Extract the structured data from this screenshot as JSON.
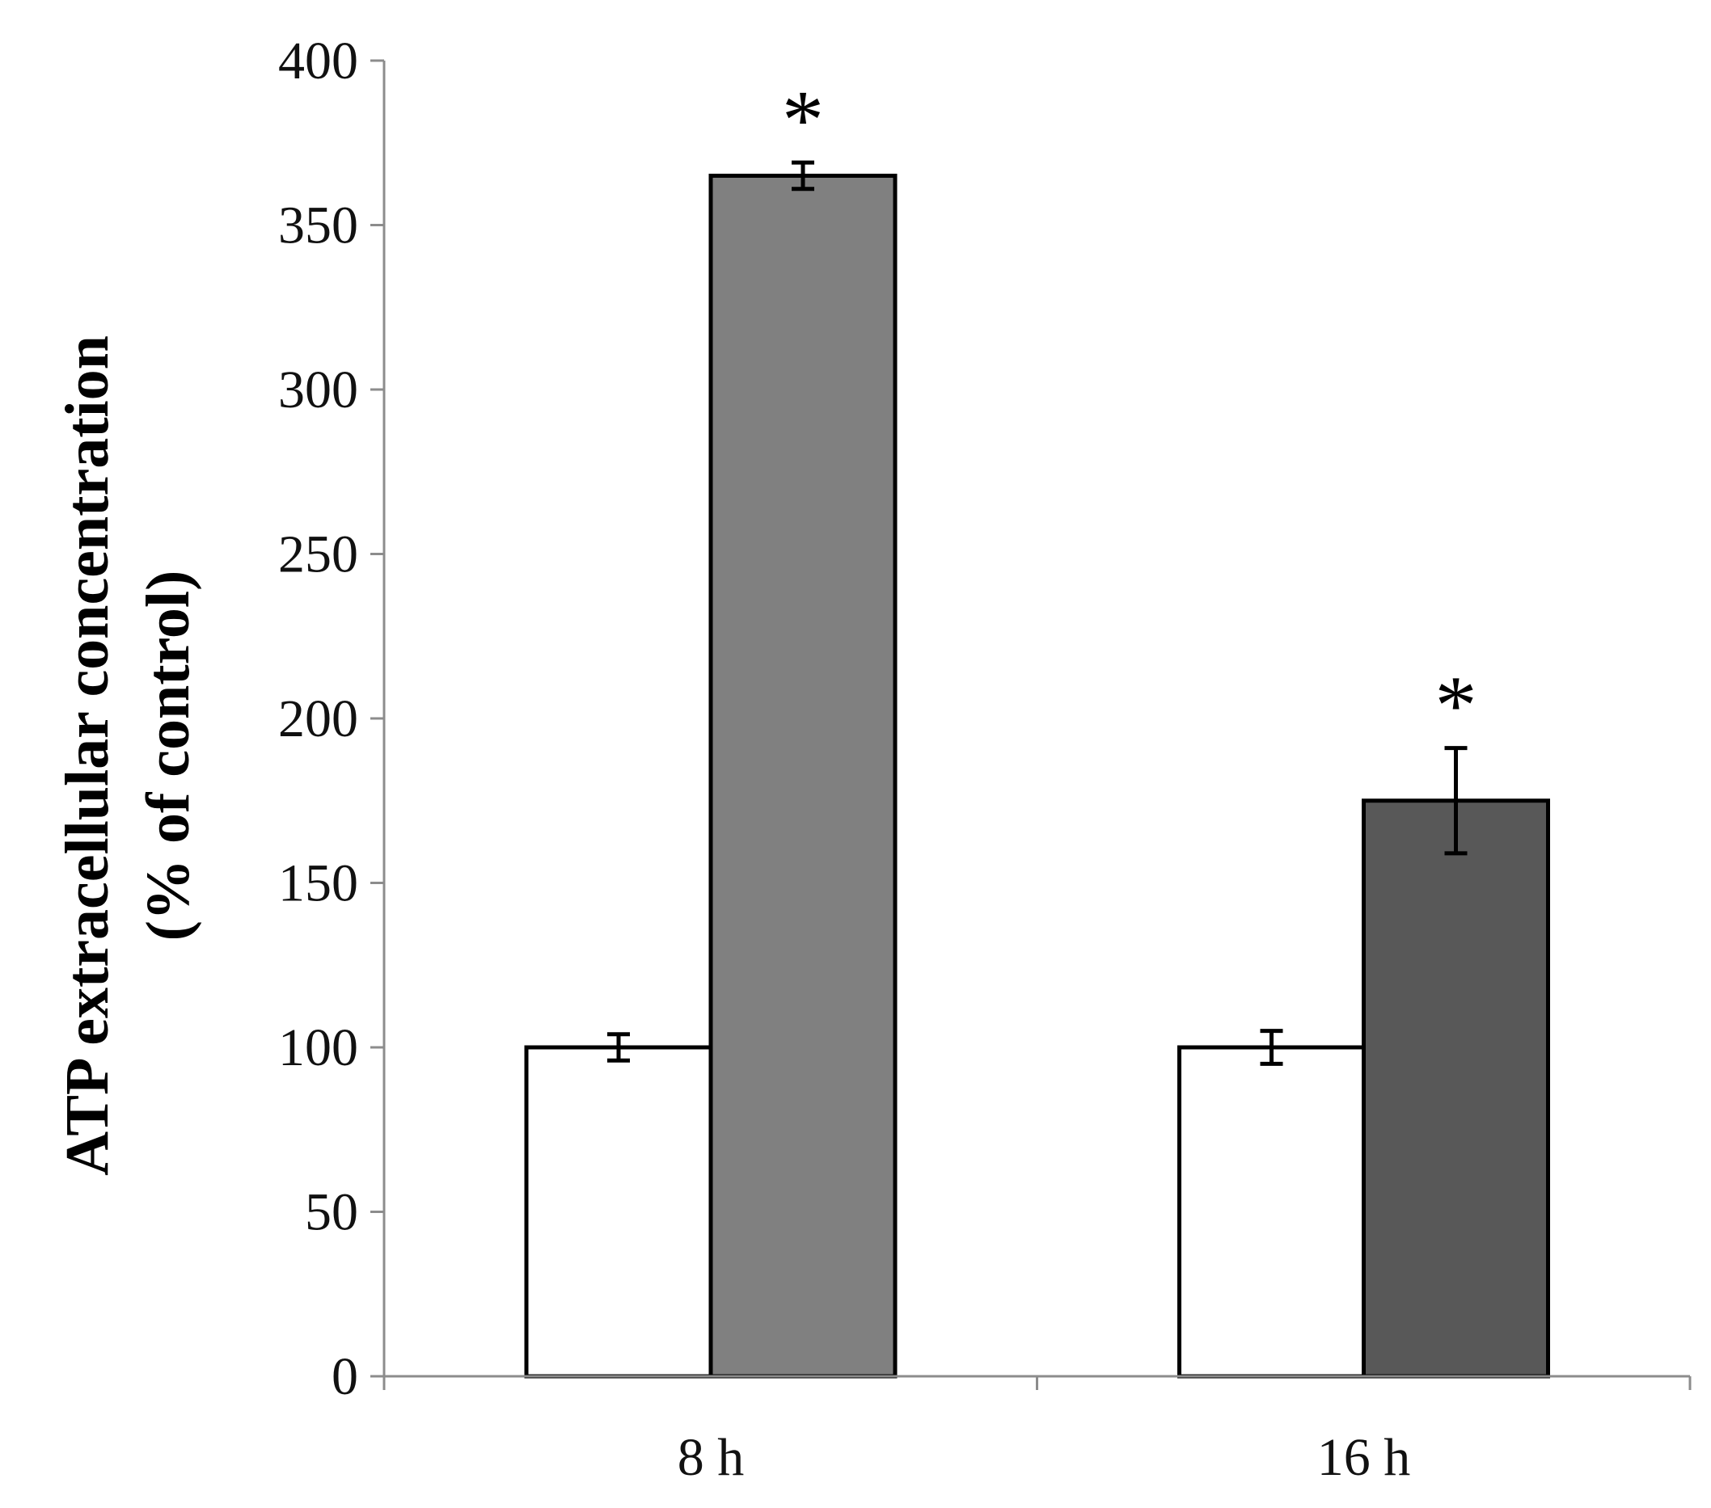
{
  "chart_data": {
    "type": "bar",
    "categories": [
      "8 h",
      "16 h"
    ],
    "series": [
      {
        "values": [
          100,
          100
        ],
        "errors": [
          4,
          5
        ],
        "colors": [
          "#ffffff",
          "#ffffff"
        ]
      },
      {
        "values": [
          365,
          175
        ],
        "errors": [
          4,
          16
        ],
        "colors": [
          "#808080",
          "#585858"
        ]
      }
    ],
    "significance": [
      [
        "",
        ""
      ],
      [
        "*",
        "*"
      ]
    ],
    "ylabel_line1": "ATP extracellular concentration",
    "ylabel_line2": "(% of control)",
    "xlabel": "",
    "ylim": [
      0,
      400
    ],
    "yticks": [
      0,
      50,
      100,
      150,
      200,
      250,
      300,
      350,
      400
    ],
    "grid": false,
    "legend": "none",
    "axis_color": "#8c8c8c",
    "bar_edge_color": "#000000"
  }
}
